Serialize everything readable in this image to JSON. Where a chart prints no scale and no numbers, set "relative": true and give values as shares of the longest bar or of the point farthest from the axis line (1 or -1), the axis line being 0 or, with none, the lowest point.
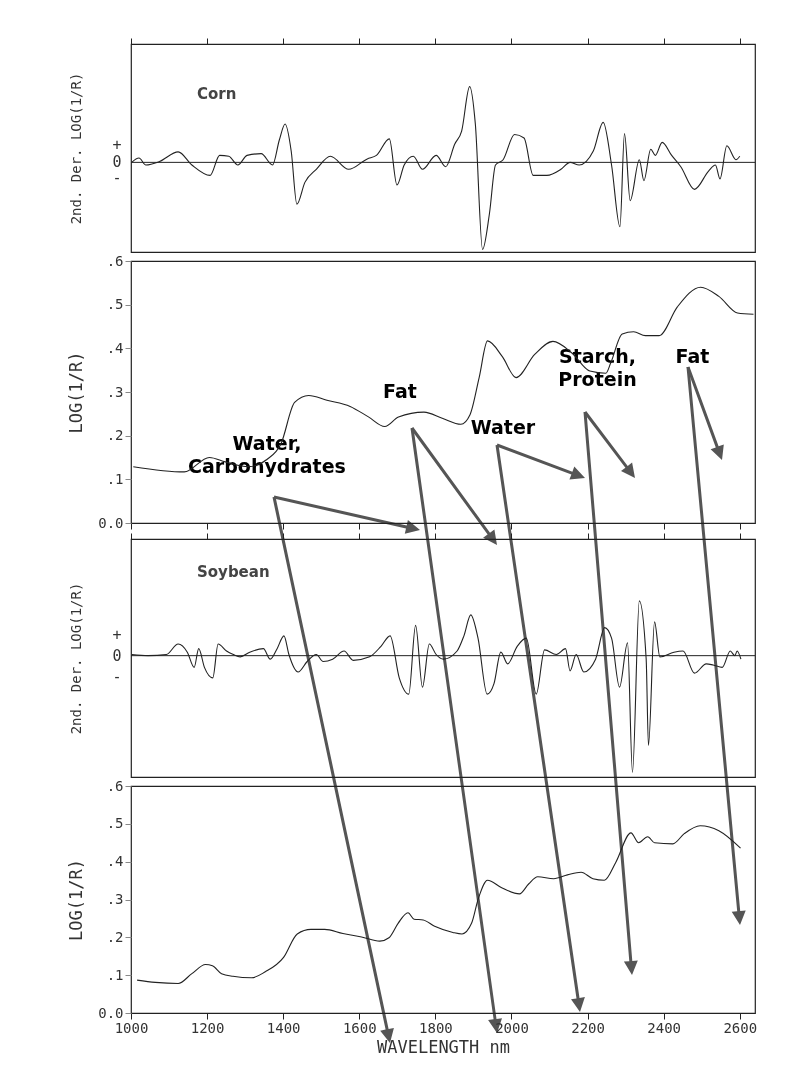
{
  "chart_data": [
    {
      "type": "line",
      "title": "Corn",
      "ylabel": "2nd. Der. LOG(1/R)",
      "relative": true,
      "tick_labels": false,
      "color": "#222222",
      "xlim": [
        1000,
        2640
      ],
      "xticks": [
        1000,
        1200,
        1400,
        1600,
        1800,
        2000,
        2200,
        2400,
        2600
      ],
      "annotations": [
        "+",
        "0",
        "-"
      ],
      "x": [
        1002,
        1021,
        1039,
        1075,
        1124,
        1160,
        1208,
        1233,
        1257,
        1281,
        1305,
        1342,
        1372,
        1390,
        1405,
        1421,
        1436,
        1457,
        1487,
        1524,
        1572,
        1621,
        1645,
        1679,
        1699,
        1718,
        1742,
        1766,
        1802,
        1827,
        1851,
        1869,
        1890,
        1905,
        1924,
        1942,
        1958,
        1978,
        2008,
        2033,
        2057,
        2093,
        2130,
        2154,
        2178,
        2215,
        2241,
        2263,
        2285,
        2297,
        2312,
        2336,
        2348,
        2366,
        2378,
        2396,
        2421,
        2445,
        2481,
        2518,
        2536,
        2548,
        2566,
        2590,
        2600
      ],
      "values": [
        0,
        0.05,
        -0.03,
        0.01,
        0.12,
        -0.03,
        -0.15,
        0.08,
        0.07,
        -0.03,
        0.08,
        0.1,
        -0.03,
        0.26,
        0.44,
        0.13,
        -0.48,
        -0.23,
        -0.08,
        0.07,
        -0.08,
        0.04,
        0.08,
        0.27,
        -0.26,
        -0.03,
        0.07,
        -0.08,
        0.08,
        -0.05,
        0.21,
        0.36,
        0.87,
        0.44,
        -1,
        -0.59,
        -0.03,
        0.03,
        0.32,
        0.28,
        -0.15,
        -0.15,
        -0.08,
        0,
        -0.03,
        0.13,
        0.46,
        -0.03,
        -0.74,
        0.33,
        -0.44,
        0.03,
        -0.21,
        0.15,
        0.08,
        0.23,
        0.08,
        -0.05,
        -0.31,
        -0.1,
        -0.03,
        -0.19,
        0.19,
        0.03,
        0.07
      ]
    },
    {
      "type": "line",
      "ylabel": "LOG(1/R)",
      "tick_labels": "y",
      "color": "#222222",
      "xlim": [
        1000,
        2640
      ],
      "xticks": [
        1000,
        1200,
        1400,
        1600,
        1800,
        2000,
        2200,
        2400,
        2600
      ],
      "ylim": [
        0,
        0.6
      ],
      "yticks": [
        {
          "value": 0,
          "label": "0.0"
        },
        {
          "value": 0.1,
          "label": ".1"
        },
        {
          "value": 0.2,
          "label": ".2"
        },
        {
          "value": 0.3,
          "label": ".3"
        },
        {
          "value": 0.4,
          "label": ".4"
        },
        {
          "value": 0.5,
          "label": ".5"
        },
        {
          "value": 0.6,
          "label": ".6"
        }
      ],
      "annotations": [
        "Water, Carbohydrates",
        "Fat",
        "Water",
        "Starch, Protein",
        "Fat"
      ],
      "x": [
        1006,
        1140,
        1206,
        1248,
        1309,
        1358,
        1394,
        1430,
        1467,
        1515,
        1576,
        1624,
        1667,
        1703,
        1770,
        1818,
        1867,
        1891,
        1915,
        1937,
        1976,
        2012,
        2061,
        2109,
        2158,
        2206,
        2248,
        2261,
        2291,
        2321,
        2352,
        2388,
        2436,
        2497,
        2545,
        2594,
        2636
      ],
      "values": [
        0.129,
        0.117,
        0.15,
        0.14,
        0.129,
        0.146,
        0.181,
        0.276,
        0.292,
        0.281,
        0.267,
        0.243,
        0.221,
        0.243,
        0.254,
        0.24,
        0.226,
        0.248,
        0.333,
        0.417,
        0.381,
        0.333,
        0.386,
        0.416,
        0.39,
        0.348,
        0.343,
        0.367,
        0.433,
        0.438,
        0.429,
        0.429,
        0.495,
        0.54,
        0.519,
        0.481,
        0.478
      ]
    },
    {
      "type": "line",
      "title": "Soybean",
      "ylabel": "2nd. Der. LOG(1/R)",
      "relative": true,
      "tick_labels": false,
      "color": "#222222",
      "xlim": [
        1000,
        2640
      ],
      "xticks": [
        1000,
        1200,
        1400,
        1600,
        1800,
        2000,
        2200,
        2400,
        2600
      ],
      "annotations": [
        "+",
        "0",
        "-"
      ],
      "x": [
        1002,
        1045,
        1093,
        1124,
        1148,
        1166,
        1178,
        1193,
        1215,
        1229,
        1251,
        1269,
        1287,
        1312,
        1348,
        1366,
        1384,
        1402,
        1415,
        1439,
        1463,
        1487,
        1505,
        1530,
        1560,
        1584,
        1627,
        1657,
        1681,
        1705,
        1730,
        1748,
        1766,
        1784,
        1802,
        1821,
        1857,
        1875,
        1893,
        1912,
        1936,
        1954,
        1972,
        1990,
        2015,
        2039,
        2065,
        2087,
        2118,
        2142,
        2154,
        2170,
        2190,
        2221,
        2245,
        2263,
        2284,
        2305,
        2318,
        2336,
        2354,
        2360,
        2376,
        2390,
        2427,
        2451,
        2481,
        2512,
        2530,
        2554,
        2575,
        2587,
        2593,
        2603
      ],
      "values": [
        0.01,
        0,
        0.01,
        0.1,
        0.03,
        -0.1,
        0.06,
        -0.1,
        -0.19,
        0.1,
        0.04,
        0.01,
        -0.01,
        0.03,
        0.06,
        -0.03,
        0.06,
        0.17,
        0.01,
        -0.14,
        -0.05,
        0.01,
        -0.05,
        -0.03,
        0.04,
        -0.04,
        -0.01,
        0.08,
        0.17,
        -0.19,
        -0.33,
        0.26,
        -0.27,
        0.1,
        0.01,
        -0.03,
        0.04,
        0.17,
        0.35,
        0.15,
        -0.33,
        -0.24,
        0.03,
        -0.07,
        0.08,
        0.15,
        -0.33,
        0.05,
        0.01,
        0.06,
        -0.13,
        0.01,
        -0.14,
        -0.03,
        0.24,
        0.15,
        -0.27,
        0.11,
        -1,
        0.47,
        -0.03,
        -0.77,
        0.29,
        -0.01,
        0.03,
        0.04,
        -0.15,
        -0.07,
        -0.08,
        -0.1,
        0.04,
        0,
        0.04,
        -0.03
      ]
    },
    {
      "type": "line",
      "xlabel": "WAVELENGTH nm",
      "ylabel": "LOG(1/R)",
      "color": "#222222",
      "xlim": [
        1000,
        2640
      ],
      "xticks": [
        1000,
        1200,
        1400,
        1600,
        1800,
        2000,
        2200,
        2400,
        2600
      ],
      "ylim": [
        0,
        0.6
      ],
      "yticks": [
        {
          "value": 0,
          "label": "0.0"
        },
        {
          "value": 0.1,
          "label": ".1"
        },
        {
          "value": 0.2,
          "label": ".2"
        },
        {
          "value": 0.3,
          "label": ".3"
        },
        {
          "value": 0.4,
          "label": ".4"
        },
        {
          "value": 0.5,
          "label": ".5"
        },
        {
          "value": 0.6,
          "label": ".6"
        }
      ],
      "x": [
        1016,
        1064,
        1124,
        1160,
        1196,
        1214,
        1238,
        1268,
        1317,
        1353,
        1401,
        1437,
        1473,
        1509,
        1557,
        1606,
        1654,
        1678,
        1702,
        1728,
        1744,
        1768,
        1798,
        1846,
        1870,
        1895,
        1913,
        1937,
        1973,
        2021,
        2045,
        2069,
        2111,
        2147,
        2183,
        2214,
        2244,
        2274,
        2314,
        2334,
        2358,
        2376,
        2424,
        2454,
        2496,
        2545,
        2602
      ],
      "values": [
        0.087,
        0.081,
        0.078,
        0.104,
        0.128,
        0.125,
        0.104,
        0.097,
        0.093,
        0.109,
        0.147,
        0.209,
        0.221,
        0.221,
        0.21,
        0.201,
        0.19,
        0.199,
        0.237,
        0.265,
        0.248,
        0.246,
        0.229,
        0.213,
        0.209,
        0.237,
        0.303,
        0.351,
        0.332,
        0.315,
        0.341,
        0.36,
        0.355,
        0.365,
        0.372,
        0.355,
        0.351,
        0.398,
        0.476,
        0.45,
        0.466,
        0.45,
        0.447,
        0.474,
        0.495,
        0.482,
        0.436
      ]
    }
  ]
}
